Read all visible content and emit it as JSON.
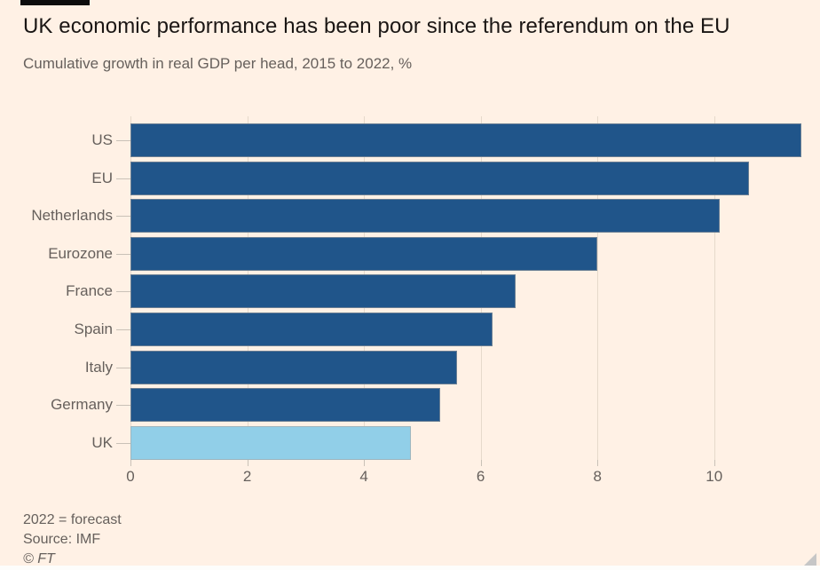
{
  "header": {
    "title": "UK economic performance has been poor since the referendum on the EU",
    "subtitle": "Cumulative growth in real GDP per head, 2015 to 2022, %"
  },
  "chart_data": {
    "type": "bar",
    "orientation": "horizontal",
    "title": "UK economic performance has been poor since the referendum on the EU",
    "subtitle": "Cumulative growth in real GDP per head, 2015 to 2022, %",
    "categories": [
      "US",
      "EU",
      "Netherlands",
      "Eurozone",
      "France",
      "Spain",
      "Italy",
      "Germany",
      "UK"
    ],
    "values": [
      11.5,
      10.6,
      10.1,
      8.0,
      6.6,
      6.2,
      5.6,
      5.3,
      4.8
    ],
    "highlight_category": "UK",
    "xlabel": "",
    "ylabel": "",
    "xlim": [
      0,
      11.6
    ],
    "x_ticks": [
      0,
      2,
      4,
      6,
      8,
      10
    ],
    "grid": "vertical",
    "legend": "none",
    "colors": {
      "bar": "#20558a",
      "highlight_bar": "#91cfe8",
      "background": "#fff1e5",
      "gridline": "#e6d9cb",
      "axis_text": "#66605c",
      "title_text": "#1a1614"
    }
  },
  "footer": {
    "note": "2022 = forecast",
    "source": "Source: IMF",
    "credit": "© FT"
  }
}
